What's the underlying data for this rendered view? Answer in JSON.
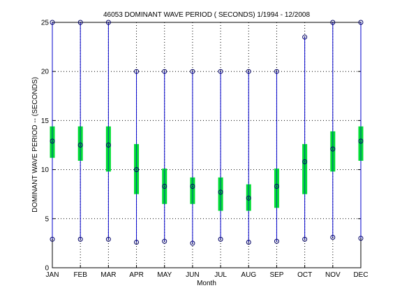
{
  "chart_data": {
    "type": "box",
    "title": "46053  DOMINANT WAVE PERIOD ( SECONDS) 1/1994 - 12/2008",
    "xlabel": "Month",
    "ylabel": "DOMINANT WAVE PERIOD --  (SECONDS)",
    "ylim": [
      0,
      25
    ],
    "yticks": [
      0,
      5,
      10,
      15,
      20,
      25
    ],
    "grid": true,
    "categories": [
      "JAN",
      "FEB",
      "MAR",
      "APR",
      "MAY",
      "JUN",
      "JUL",
      "AUG",
      "SEP",
      "OCT",
      "NOV",
      "DEC"
    ],
    "series": [
      {
        "min": [
          2.9,
          2.9,
          2.9,
          2.6,
          2.7,
          2.5,
          2.9,
          2.6,
          2.7,
          2.9,
          3.1,
          3.0
        ],
        "q1": [
          11.2,
          10.9,
          9.8,
          7.5,
          6.5,
          6.5,
          5.8,
          5.8,
          6.1,
          7.5,
          9.8,
          10.9
        ],
        "median": [
          12.9,
          12.5,
          12.5,
          10.0,
          8.3,
          8.3,
          7.7,
          7.1,
          8.3,
          10.8,
          12.1,
          12.9
        ],
        "q3": [
          14.4,
          14.4,
          14.4,
          12.6,
          10.1,
          9.2,
          9.2,
          8.5,
          10.1,
          12.6,
          13.9,
          14.4
        ],
        "max": [
          25.0,
          25.0,
          25.0,
          20.0,
          20.0,
          20.0,
          20.0,
          20.0,
          20.0,
          23.5,
          25.0,
          25.0
        ]
      }
    ],
    "colors": {
      "whisker": "#0000cc",
      "box": "#00dd33",
      "marker": "#000066",
      "grid": "#000000"
    }
  }
}
